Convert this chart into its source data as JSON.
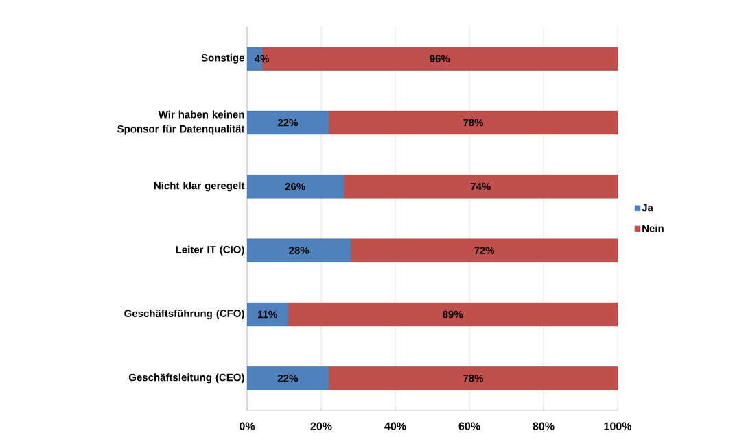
{
  "chart_data": {
    "type": "bar",
    "orientation": "horizontal",
    "stacked": true,
    "categories": [
      "Sonstige",
      "Wir haben keinen Sponsor für Datenqualität",
      "Nicht klar geregelt",
      "Leiter IT (CIO)",
      "Geschäftsführung (CFO)",
      "Geschäftsleitung (CEO)"
    ],
    "series": [
      {
        "name": "Ja",
        "color": "#4f81bd",
        "values": [
          4,
          22,
          26,
          28,
          11,
          22
        ],
        "value_labels": [
          "4%",
          "22%",
          "26%",
          "28%",
          "11%",
          "22%"
        ]
      },
      {
        "name": "Nein",
        "color": "#c0504d",
        "values": [
          96,
          78,
          74,
          72,
          89,
          78
        ],
        "value_labels": [
          "96%",
          "78%",
          "74%",
          "72%",
          "89%",
          "78%"
        ]
      }
    ],
    "xlim": [
      0,
      100
    ],
    "xticks": [
      {
        "value": 0,
        "label": "0%"
      },
      {
        "value": 20,
        "label": "20%"
      },
      {
        "value": 40,
        "label": "40%"
      },
      {
        "value": 60,
        "label": "60%"
      },
      {
        "value": 80,
        "label": "80%"
      },
      {
        "value": 100,
        "label": "100%"
      }
    ],
    "grid": "x",
    "legend": "right"
  }
}
